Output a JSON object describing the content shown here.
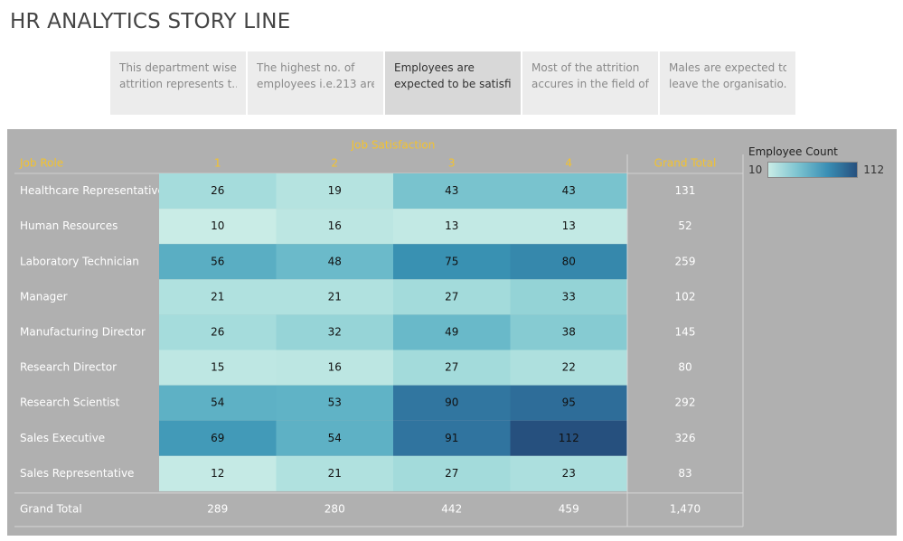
{
  "title": "HR ANALYTICS STORY LINE",
  "story_points": [
    {
      "line1": "This department wise",
      "line2": "attrition represents t..",
      "active": false
    },
    {
      "line1": "The highest no. of",
      "line2": "employees i.e.213 are..",
      "active": false
    },
    {
      "line1": "Employees are",
      "line2": "expected to be satisfi..",
      "active": true
    },
    {
      "line1": "Most of the attrition",
      "line2": "accures in the field of ..",
      "active": false
    },
    {
      "line1": "Males are expected to",
      "line2": "leave the organisatio..",
      "active": false
    }
  ],
  "legend": {
    "title": "Employee Count",
    "min_label": "10",
    "max_label": "112",
    "color_low": "#c9ece6",
    "color_high": "#26507e"
  },
  "colors": {
    "header_text": "#f2c230",
    "panel_bg": "#b0b0b0",
    "text_white": "#ffffff",
    "text_dark": "#111111"
  },
  "chart_data": {
    "type": "heatmap",
    "title": "",
    "column_header": "Job Satisfaction",
    "row_header": "Job Role",
    "columns": [
      "1",
      "2",
      "3",
      "4"
    ],
    "rows": [
      "Healthcare Representative",
      "Human Resources",
      "Laboratory Technician",
      "Manager",
      "Manufacturing Director",
      "Research Director",
      "Research Scientist",
      "Sales Executive",
      "Sales Representative"
    ],
    "values": [
      [
        26,
        19,
        43,
        43
      ],
      [
        10,
        16,
        13,
        13
      ],
      [
        56,
        48,
        75,
        80
      ],
      [
        21,
        21,
        27,
        33
      ],
      [
        26,
        32,
        49,
        38
      ],
      [
        15,
        16,
        27,
        22
      ],
      [
        54,
        53,
        90,
        95
      ],
      [
        69,
        54,
        91,
        112
      ],
      [
        12,
        21,
        27,
        23
      ]
    ],
    "grand_total_label": "Grand Total",
    "row_totals": [
      "131",
      "52",
      "259",
      "102",
      "145",
      "80",
      "292",
      "326",
      "83"
    ],
    "column_totals": [
      "289",
      "280",
      "442",
      "459"
    ],
    "overall_total": "1,470",
    "color_range": [
      10,
      112
    ]
  }
}
